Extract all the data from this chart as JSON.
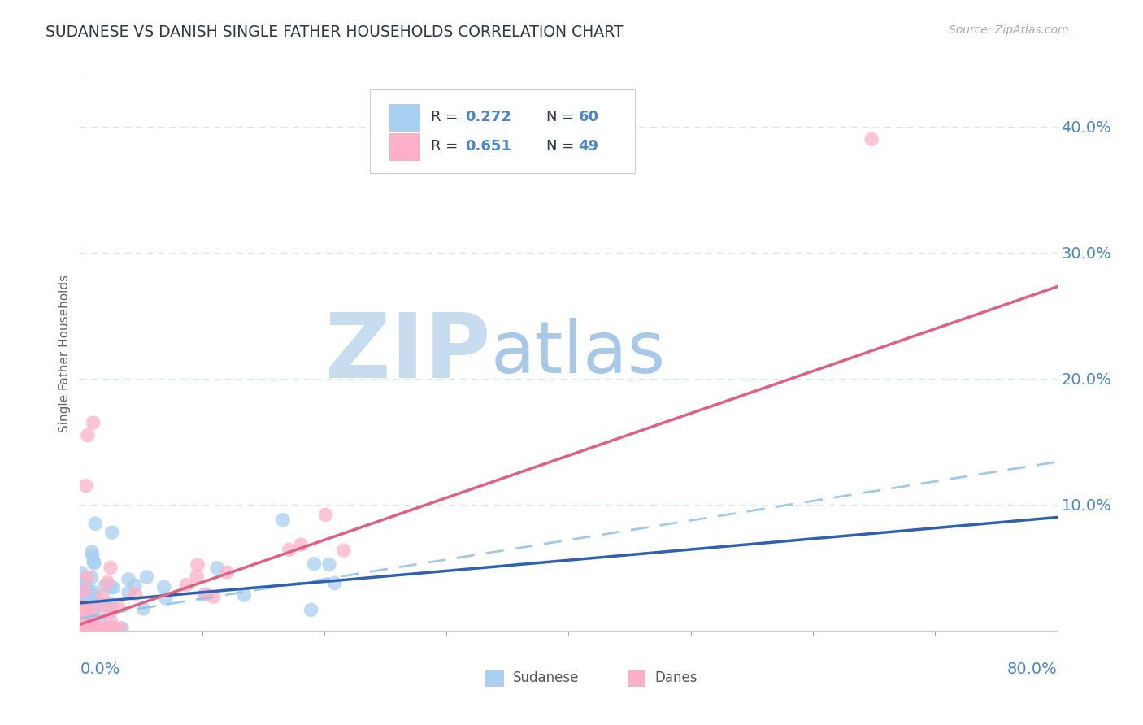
{
  "title": "SUDANESE VS DANISH SINGLE FATHER HOUSEHOLDS CORRELATION CHART",
  "source": "Source: ZipAtlas.com",
  "ylabel": "Single Father Households",
  "color_sudanese": "#A8D0F0",
  "color_danes": "#FFB0C8",
  "color_sudanese_line": "#3060B0",
  "color_danes_line": "#E06080",
  "color_sudanese_dash": "#90C0E8",
  "color_title": "#303840",
  "color_tick_blue": "#4A86C8",
  "color_legend_text": "#303840",
  "color_legend_values": "#4A86C8",
  "watermark_ZIP": "#C8DCF0",
  "watermark_atlas": "#A8C8E8",
  "background_color": "#FFFFFF",
  "grid_color": "#D8E4EE",
  "xlim": [
    0.0,
    0.8
  ],
  "ylim": [
    0.0,
    0.44
  ],
  "ytick_vals": [
    0.1,
    0.2,
    0.3,
    0.4
  ],
  "ytick_labels": [
    "10.0%",
    "20.0%",
    "30.0%",
    "40.0%"
  ],
  "R_sudanese": 0.272,
  "N_sudanese": 60,
  "R_danes": 0.651,
  "N_danes": 49,
  "sud_line_slope": 0.085,
  "sud_line_intercept": 0.022,
  "dan_line_slope": 0.335,
  "dan_line_intercept": 0.005,
  "sud_dash_slope": 0.155,
  "sud_dash_intercept": 0.01
}
